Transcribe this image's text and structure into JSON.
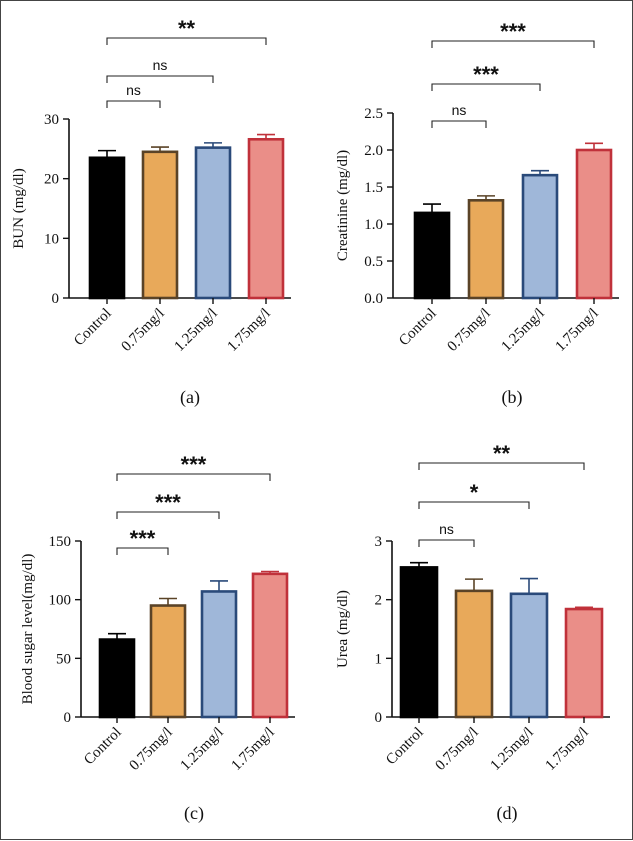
{
  "colors": {
    "fills": [
      "#000000",
      "#E8A95A",
      "#9FB7D9",
      "#EA8E88"
    ],
    "edges": [
      "#000000",
      "#5A4327",
      "#2A4A7A",
      "#C0313A"
    ]
  },
  "chart_data": [
    {
      "type": "bar",
      "panel_label": "(a)",
      "ylabel": "BUN (mg/dl)",
      "categories": [
        "Control",
        "0.75mg/l",
        "1.25mg/l",
        "1.75mg/l"
      ],
      "values": [
        23.5,
        24.5,
        25.2,
        26.6
      ],
      "errors": [
        1.2,
        0.8,
        0.8,
        0.8
      ],
      "ylim": [
        0,
        30
      ],
      "yticks": [
        0,
        10,
        20,
        30
      ],
      "ytick_labels": [
        "0",
        "10",
        "20",
        "30"
      ],
      "comparisons": [
        {
          "from": 0,
          "to": 1,
          "label": "ns"
        },
        {
          "from": 0,
          "to": 2,
          "label": "ns"
        },
        {
          "from": 0,
          "to": 3,
          "label": "**"
        }
      ]
    },
    {
      "type": "bar",
      "panel_label": "(b)",
      "ylabel": "Creatinine (mg/dl)",
      "categories": [
        "Control",
        "0.75mg/l",
        "1.25mg/l",
        "1.75mg/l"
      ],
      "values": [
        1.15,
        1.32,
        1.66,
        2.0
      ],
      "errors": [
        0.12,
        0.06,
        0.06,
        0.09
      ],
      "ylim": [
        0,
        2.5
      ],
      "yticks": [
        0,
        0.5,
        1.0,
        1.5,
        2.0,
        2.5
      ],
      "ytick_labels": [
        "0.0",
        "0.5",
        "1.0",
        "1.5",
        "2.0",
        "2.5"
      ],
      "comparisons": [
        {
          "from": 0,
          "to": 1,
          "label": "ns"
        },
        {
          "from": 0,
          "to": 2,
          "label": "***"
        },
        {
          "from": 0,
          "to": 3,
          "label": "***"
        }
      ]
    },
    {
      "type": "bar",
      "panel_label": "(c)",
      "ylabel": "Blood sugar level(mg/dl)",
      "categories": [
        "Control",
        "0.75mg/l",
        "1.25mg/l",
        "1.75mg/l"
      ],
      "values": [
        66,
        95,
        107,
        122
      ],
      "errors": [
        5,
        6,
        9,
        2
      ],
      "ylim": [
        0,
        150
      ],
      "yticks": [
        0,
        50,
        100,
        150
      ],
      "ytick_labels": [
        "0",
        "50",
        "100",
        "150"
      ],
      "comparisons": [
        {
          "from": 0,
          "to": 1,
          "label": "***"
        },
        {
          "from": 0,
          "to": 2,
          "label": "***"
        },
        {
          "from": 0,
          "to": 3,
          "label": "***"
        }
      ]
    },
    {
      "type": "bar",
      "panel_label": "(d)",
      "ylabel": "Urea (mg/dl)",
      "categories": [
        "Control",
        "0.75mg/l",
        "1.25mg/l",
        "1.75mg/l"
      ],
      "values": [
        2.55,
        2.15,
        2.1,
        1.84
      ],
      "errors": [
        0.08,
        0.2,
        0.26,
        0.03
      ],
      "ylim": [
        0,
        3
      ],
      "yticks": [
        0,
        1,
        2,
        3
      ],
      "ytick_labels": [
        "0",
        "1",
        "2",
        "3"
      ],
      "comparisons": [
        {
          "from": 0,
          "to": 1,
          "label": "ns"
        },
        {
          "from": 0,
          "to": 2,
          "label": "*"
        },
        {
          "from": 0,
          "to": 3,
          "label": "**"
        }
      ]
    }
  ]
}
